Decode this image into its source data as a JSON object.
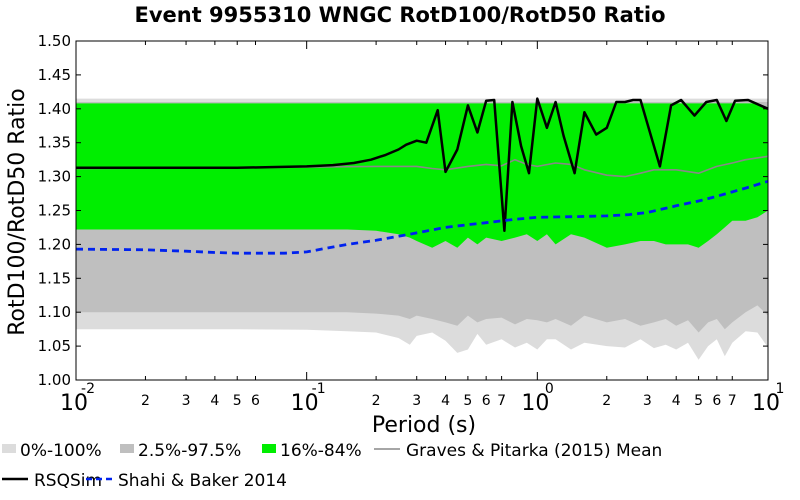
{
  "chart_data": {
    "type": "area",
    "title": "Event 9955310 WNGC RotD100/RotD50 Ratio",
    "xlabel": "Period (s)",
    "ylabel": "RotD100/RotD50 Ratio",
    "xscale": "log",
    "xlim": [
      0.01,
      10
    ],
    "ylim": [
      1.0,
      1.5
    ],
    "y_ticks": [
      "1.00",
      "1.05",
      "1.10",
      "1.15",
      "1.20",
      "1.25",
      "1.30",
      "1.35",
      "1.40",
      "1.45",
      "1.50"
    ],
    "x_major_ticks": [
      {
        "value": 0.01,
        "base": "10",
        "exp": "-2"
      },
      {
        "value": 0.1,
        "base": "10",
        "exp": "-1"
      },
      {
        "value": 1,
        "base": "10",
        "exp": "0"
      },
      {
        "value": 10,
        "base": "10",
        "exp": "1"
      }
    ],
    "x_minor_ticks": [
      {
        "value": 0.02,
        "label": "2"
      },
      {
        "value": 0.03,
        "label": "3"
      },
      {
        "value": 0.04,
        "label": "4"
      },
      {
        "value": 0.05,
        "label": "5"
      },
      {
        "value": 0.06,
        "label": "6"
      },
      {
        "value": 0.2,
        "label": "2"
      },
      {
        "value": 0.3,
        "label": "3"
      },
      {
        "value": 0.4,
        "label": "4"
      },
      {
        "value": 0.5,
        "label": "5"
      },
      {
        "value": 0.6,
        "label": "6"
      },
      {
        "value": 0.7,
        "label": "7"
      },
      {
        "value": 2,
        "label": "2"
      },
      {
        "value": 3,
        "label": "3"
      },
      {
        "value": 4,
        "label": "4"
      },
      {
        "value": 5,
        "label": "5"
      },
      {
        "value": 6,
        "label": "6"
      },
      {
        "value": 7,
        "label": "7"
      }
    ],
    "grid": false,
    "legend_position": "bottom",
    "bands": [
      {
        "name": "0%-100%",
        "color": "#dcdcdc",
        "x": [
          0.01,
          0.05,
          0.1,
          0.15,
          0.2,
          0.25,
          0.28,
          0.3,
          0.35,
          0.4,
          0.45,
          0.5,
          0.55,
          0.6,
          0.7,
          0.8,
          0.9,
          1.0,
          1.1,
          1.2,
          1.4,
          1.6,
          2.0,
          2.4,
          2.8,
          3.2,
          3.6,
          4.0,
          4.5,
          5.0,
          5.5,
          6.0,
          6.5,
          7.0,
          8.0,
          9.0,
          10
        ],
        "lower": [
          1.075,
          1.075,
          1.074,
          1.072,
          1.07,
          1.062,
          1.052,
          1.065,
          1.07,
          1.058,
          1.04,
          1.045,
          1.068,
          1.052,
          1.06,
          1.048,
          1.055,
          1.045,
          1.06,
          1.06,
          1.045,
          1.055,
          1.05,
          1.048,
          1.06,
          1.047,
          1.052,
          1.045,
          1.055,
          1.03,
          1.05,
          1.06,
          1.035,
          1.055,
          1.072,
          1.07,
          1.048
        ],
        "upper": [
          1.415,
          1.415,
          1.415,
          1.415,
          1.415,
          1.415,
          1.415,
          1.415,
          1.415,
          1.415,
          1.415,
          1.415,
          1.415,
          1.415,
          1.415,
          1.415,
          1.415,
          1.415,
          1.415,
          1.415,
          1.415,
          1.415,
          1.415,
          1.415,
          1.415,
          1.415,
          1.415,
          1.415,
          1.415,
          1.415,
          1.415,
          1.415,
          1.415,
          1.415,
          1.415,
          1.415,
          1.415
        ]
      },
      {
        "name": "2.5%-97.5%",
        "color": "#bfbfbf",
        "x": [
          0.01,
          0.05,
          0.1,
          0.15,
          0.2,
          0.25,
          0.28,
          0.3,
          0.35,
          0.4,
          0.45,
          0.5,
          0.55,
          0.6,
          0.7,
          0.8,
          0.9,
          1.0,
          1.1,
          1.2,
          1.4,
          1.6,
          2.0,
          2.4,
          2.8,
          3.2,
          3.6,
          4.0,
          4.5,
          5.0,
          5.5,
          6.0,
          6.5,
          7.0,
          8.0,
          9.0,
          10
        ],
        "lower": [
          1.1,
          1.1,
          1.1,
          1.1,
          1.098,
          1.095,
          1.09,
          1.095,
          1.09,
          1.085,
          1.08,
          1.095,
          1.085,
          1.09,
          1.092,
          1.082,
          1.09,
          1.088,
          1.085,
          1.09,
          1.08,
          1.095,
          1.085,
          1.09,
          1.08,
          1.085,
          1.09,
          1.08,
          1.088,
          1.07,
          1.085,
          1.09,
          1.075,
          1.085,
          1.1,
          1.11,
          1.095
        ],
        "upper": [
          1.41,
          1.41,
          1.41,
          1.41,
          1.41,
          1.41,
          1.41,
          1.41,
          1.41,
          1.41,
          1.41,
          1.41,
          1.41,
          1.41,
          1.41,
          1.41,
          1.41,
          1.41,
          1.41,
          1.41,
          1.41,
          1.41,
          1.41,
          1.41,
          1.41,
          1.41,
          1.41,
          1.41,
          1.41,
          1.41,
          1.41,
          1.41,
          1.41,
          1.41,
          1.41,
          1.41,
          1.41
        ]
      },
      {
        "name": "16%-84%",
        "color": "#00ee00",
        "x": [
          0.01,
          0.05,
          0.1,
          0.15,
          0.2,
          0.25,
          0.28,
          0.3,
          0.35,
          0.4,
          0.45,
          0.5,
          0.55,
          0.6,
          0.7,
          0.8,
          0.9,
          1.0,
          1.1,
          1.2,
          1.4,
          1.6,
          2.0,
          2.4,
          2.8,
          3.2,
          3.6,
          4.0,
          4.5,
          5.0,
          5.5,
          6.0,
          6.5,
          7.0,
          8.0,
          9.0,
          10
        ],
        "lower": [
          1.222,
          1.222,
          1.222,
          1.222,
          1.22,
          1.215,
          1.21,
          1.205,
          1.195,
          1.205,
          1.195,
          1.21,
          1.2,
          1.21,
          1.205,
          1.21,
          1.215,
          1.205,
          1.215,
          1.2,
          1.215,
          1.21,
          1.195,
          1.2,
          1.205,
          1.205,
          1.2,
          1.2,
          1.2,
          1.195,
          1.205,
          1.215,
          1.225,
          1.235,
          1.235,
          1.24,
          1.25
        ],
        "upper": [
          1.408,
          1.408,
          1.408,
          1.408,
          1.408,
          1.408,
          1.408,
          1.408,
          1.408,
          1.408,
          1.408,
          1.408,
          1.408,
          1.408,
          1.408,
          1.408,
          1.408,
          1.408,
          1.408,
          1.408,
          1.408,
          1.408,
          1.408,
          1.408,
          1.408,
          1.408,
          1.408,
          1.408,
          1.408,
          1.408,
          1.408,
          1.408,
          1.408,
          1.408,
          1.408,
          1.408,
          1.402
        ]
      }
    ],
    "series": [
      {
        "name": "Graves & Pitarka (2015) Mean",
        "color": "#888888",
        "style": "solid",
        "x": [
          0.01,
          0.05,
          0.1,
          0.2,
          0.3,
          0.35,
          0.4,
          0.5,
          0.6,
          0.7,
          0.8,
          0.9,
          1.0,
          1.2,
          1.4,
          1.6,
          2.0,
          2.4,
          2.8,
          3.2,
          3.6,
          4.0,
          5.0,
          6.0,
          7.0,
          8.0,
          10
        ],
        "y": [
          1.312,
          1.313,
          1.314,
          1.315,
          1.315,
          1.312,
          1.31,
          1.315,
          1.318,
          1.316,
          1.325,
          1.318,
          1.315,
          1.32,
          1.318,
          1.31,
          1.302,
          1.3,
          1.305,
          1.31,
          1.31,
          1.31,
          1.305,
          1.315,
          1.32,
          1.325,
          1.33
        ]
      },
      {
        "name": "RSQSim",
        "color": "#000000",
        "style": "solid",
        "x": [
          0.01,
          0.03,
          0.05,
          0.07,
          0.1,
          0.13,
          0.16,
          0.19,
          0.22,
          0.25,
          0.27,
          0.3,
          0.33,
          0.37,
          0.4,
          0.45,
          0.5,
          0.55,
          0.6,
          0.65,
          0.72,
          0.78,
          0.85,
          0.92,
          1.0,
          1.1,
          1.2,
          1.3,
          1.45,
          1.6,
          1.8,
          2.0,
          2.2,
          2.4,
          2.6,
          2.8,
          3.0,
          3.4,
          3.8,
          4.2,
          4.8,
          5.4,
          6.0,
          6.6,
          7.2,
          8.2,
          10
        ],
        "y": [
          1.313,
          1.313,
          1.313,
          1.314,
          1.315,
          1.317,
          1.32,
          1.325,
          1.332,
          1.34,
          1.347,
          1.353,
          1.35,
          1.398,
          1.307,
          1.34,
          1.405,
          1.365,
          1.412,
          1.413,
          1.22,
          1.41,
          1.345,
          1.305,
          1.415,
          1.372,
          1.41,
          1.36,
          1.305,
          1.395,
          1.362,
          1.372,
          1.41,
          1.41,
          1.413,
          1.413,
          1.378,
          1.315,
          1.405,
          1.413,
          1.39,
          1.41,
          1.413,
          1.382,
          1.412,
          1.413,
          1.4
        ]
      },
      {
        "name": "Shahi & Baker 2014",
        "color": "#0022ee",
        "style": "dashed",
        "x": [
          0.01,
          0.02,
          0.03,
          0.04,
          0.05,
          0.06,
          0.08,
          0.1,
          0.12,
          0.15,
          0.2,
          0.25,
          0.3,
          0.4,
          0.5,
          0.6,
          0.8,
          1.0,
          1.5,
          2.0,
          2.5,
          3.0,
          4.0,
          5.0,
          6.0,
          8.0,
          10
        ],
        "y": [
          1.193,
          1.192,
          1.19,
          1.188,
          1.187,
          1.187,
          1.187,
          1.189,
          1.194,
          1.2,
          1.206,
          1.212,
          1.217,
          1.225,
          1.229,
          1.232,
          1.237,
          1.24,
          1.241,
          1.242,
          1.244,
          1.247,
          1.257,
          1.264,
          1.271,
          1.283,
          1.293
        ]
      }
    ],
    "legend": [
      {
        "label": "0%-100%",
        "kind": "patch",
        "color": "#dcdcdc"
      },
      {
        "label": "2.5%-97.5%",
        "kind": "patch",
        "color": "#bfbfbf"
      },
      {
        "label": "16%-84%",
        "kind": "patch",
        "color": "#00ee00"
      },
      {
        "label": "Graves & Pitarka (2015) Mean",
        "kind": "line",
        "color": "#888888",
        "style": "solid"
      },
      {
        "label": "RSQSim",
        "kind": "line",
        "color": "#000000",
        "style": "solid"
      },
      {
        "label": "Shahi & Baker 2014",
        "kind": "line",
        "color": "#0022ee",
        "style": "dashed"
      }
    ]
  }
}
